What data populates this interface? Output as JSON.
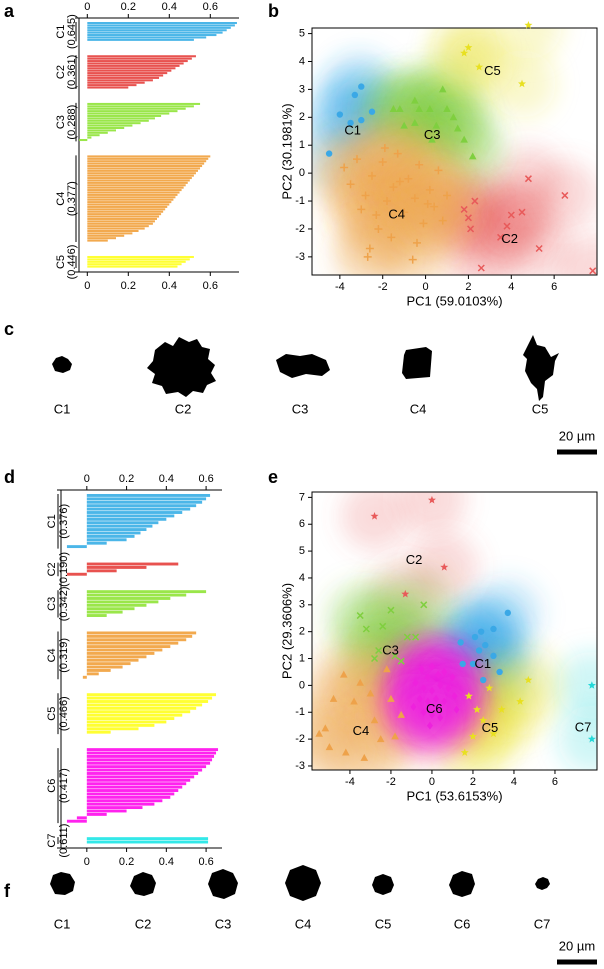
{
  "panel_labels": [
    "a",
    "b",
    "c",
    "d",
    "e",
    "f"
  ],
  "chart_data": [
    {
      "type": "silhouette",
      "xlim": [
        -0.06,
        0.74
      ],
      "xticks": [
        0,
        0.2,
        0.4,
        0.6
      ],
      "series": [
        {
          "name": "C1",
          "mean_label": "(0.645)",
          "color": "#4bb6e8",
          "values": [
            0.73,
            0.72,
            0.7,
            0.68,
            0.66,
            0.63,
            0.58,
            0.52
          ]
        },
        {
          "name": "C2",
          "mean_label": "(0.361)",
          "color": "#e8524f",
          "values": [
            0.53,
            0.51,
            0.49,
            0.47,
            0.45,
            0.43,
            0.41,
            0.39,
            0.37,
            0.35,
            0.32,
            0.28,
            0.24,
            0.2
          ]
        },
        {
          "name": "C3",
          "mean_label": "(0.288)",
          "color": "#9ae64a",
          "values": [
            0.55,
            0.52,
            0.48,
            0.44,
            0.4,
            0.36,
            0.33,
            0.3,
            0.26,
            0.22,
            0.18,
            0.14,
            0.1,
            0.06,
            0.02,
            -0.04
          ]
        },
        {
          "name": "C4",
          "mean_label": "(0.377)",
          "color": "#f2a94e",
          "values": [
            0.6,
            0.59,
            0.58,
            0.57,
            0.56,
            0.55,
            0.54,
            0.53,
            0.52,
            0.51,
            0.5,
            0.49,
            0.48,
            0.47,
            0.46,
            0.45,
            0.44,
            0.43,
            0.42,
            0.41,
            0.4,
            0.39,
            0.38,
            0.37,
            0.36,
            0.35,
            0.34,
            0.33,
            0.32,
            0.3,
            0.28,
            0.25,
            0.22,
            0.18,
            0.14,
            0.1
          ]
        },
        {
          "name": "C5",
          "mean_label": "(0.446)",
          "color": "#ffff33",
          "values": [
            0.52,
            0.5,
            0.48,
            0.46,
            0.44
          ]
        }
      ]
    },
    {
      "type": "scatter",
      "x_label": "PC1 (59.0103%)",
      "y_label": "PC2 (30.1981%)",
      "xlim": [
        -5.3,
        8.0
      ],
      "xticks": [
        -4,
        -2,
        0,
        2,
        4,
        6
      ],
      "ylim": [
        -3.65,
        5.2
      ],
      "yticks": [
        -3,
        -2,
        -1,
        0,
        1,
        2,
        3,
        4,
        5
      ],
      "series": [
        {
          "name": "C1",
          "color": "#3aa8e6",
          "marker": "circle",
          "x": [
            -4.5,
            -4,
            -3.5,
            -3.3,
            -3,
            -3,
            -2.5
          ],
          "y": [
            0.7,
            2.1,
            1.8,
            2.8,
            3.1,
            1.9,
            2.2
          ]
        },
        {
          "name": "C2",
          "color": "#e85a5a",
          "marker": "x",
          "x": [
            1.8,
            2.0,
            2.3,
            2.1,
            2.6,
            3.5,
            4.0,
            4.5,
            3.8,
            4.8,
            5.3,
            6.5,
            7.8
          ],
          "y": [
            -1.3,
            -1.6,
            -1.0,
            -2.0,
            -3.4,
            -2.3,
            -1.5,
            -1.4,
            -1.9,
            -0.2,
            -2.7,
            -0.8,
            -3.5
          ]
        },
        {
          "name": "C3",
          "color": "#7fcf3f",
          "marker": "triangle",
          "x": [
            -1.5,
            -1.2,
            -0.5,
            -0.3,
            0.2,
            0.5,
            0.8,
            1.0,
            1.3,
            1.5,
            -0.5,
            1.8,
            2.2,
            0.3,
            -1.0
          ],
          "y": [
            2.3,
            2.3,
            2.6,
            2.3,
            2.3,
            1.7,
            3.0,
            2.3,
            2.0,
            1.6,
            1.8,
            1.2,
            0.6,
            1.2,
            1.7
          ]
        },
        {
          "name": "C4",
          "color": "#eea24a",
          "marker": "plus",
          "x": [
            -3.8,
            -3.5,
            -3.2,
            -3.0,
            -2.8,
            -2.6,
            -2.5,
            -2.3,
            -2.0,
            -1.8,
            -1.6,
            -1.5,
            -1.3,
            -1.0,
            -0.8,
            -0.6,
            -0.5,
            -0.3,
            -0.1,
            0.2,
            0.4,
            0.6,
            0.8,
            1.0,
            -2.2,
            -1.2,
            -0.4,
            0.1,
            -2.7,
            -1.9
          ],
          "y": [
            0.2,
            -0.4,
            0.5,
            -1.3,
            -0.8,
            -2.7,
            -0.1,
            -1.5,
            0.4,
            -1.0,
            -2.3,
            -0.5,
            0.7,
            -1.4,
            -0.2,
            -3.1,
            -0.9,
            0.3,
            -1.8,
            -0.6,
            -1.2,
            0.1,
            -1.7,
            -0.8,
            -2.0,
            -0.3,
            -2.5,
            -1.1,
            -3.0,
            0.9
          ]
        },
        {
          "name": "C5",
          "color": "#e8e020",
          "marker": "star",
          "x": [
            1.8,
            2.0,
            2.5,
            4.5,
            4.8
          ],
          "y": [
            4.3,
            4.5,
            3.8,
            3.2,
            5.3
          ]
        }
      ]
    },
    {
      "type": "silhouette",
      "xlim": [
        -0.15,
        0.68
      ],
      "xticks": [
        0,
        0.2,
        0.4,
        0.6
      ],
      "series": [
        {
          "name": "C1",
          "mean_label": "(0.376)",
          "color": "#4bb6e8",
          "values": [
            0.62,
            0.6,
            0.58,
            0.55,
            0.52,
            0.48,
            0.44,
            0.4,
            0.36,
            0.33,
            0.3,
            0.27,
            0.24,
            0.2,
            0.1,
            -0.1
          ]
        },
        {
          "name": "C2",
          "mean_label": "(0.190)",
          "color": "#e8524f",
          "values": [
            0.46,
            0.3,
            0.15,
            -0.1
          ]
        },
        {
          "name": "C3",
          "mean_label": "(0.342)",
          "color": "#9ae64a",
          "values": [
            0.6,
            0.5,
            0.42,
            0.36,
            0.3,
            0.24,
            0.18,
            0.1
          ]
        },
        {
          "name": "C4",
          "mean_label": "(0.319)",
          "color": "#f2a94e",
          "values": [
            0.55,
            0.53,
            0.5,
            0.46,
            0.42,
            0.38,
            0.34,
            0.3,
            0.26,
            0.22,
            0.18,
            0.12,
            0.06,
            -0.02
          ]
        },
        {
          "name": "C5",
          "mean_label": "(0.466)",
          "color": "#ffff33",
          "values": [
            0.65,
            0.63,
            0.61,
            0.58,
            0.55,
            0.52,
            0.48,
            0.44,
            0.4,
            0.34,
            0.26,
            0.12
          ]
        },
        {
          "name": "C6",
          "mean_label": "(0.417)",
          "color": "#ff22ee",
          "values": [
            0.66,
            0.65,
            0.64,
            0.63,
            0.62,
            0.6,
            0.58,
            0.56,
            0.54,
            0.52,
            0.5,
            0.48,
            0.46,
            0.44,
            0.42,
            0.38,
            0.34,
            0.28,
            0.2,
            0.1,
            -0.05,
            -0.1
          ]
        },
        {
          "name": "C7",
          "mean_label": "(0.611)",
          "color": "#33e8e8",
          "values": [
            0.61,
            0.61
          ]
        }
      ]
    },
    {
      "type": "scatter",
      "x_label": "PC1 (53.6153%)",
      "y_label": "PC2 (29.3606%)",
      "xlim": [
        -5.85,
        8.05
      ],
      "xticks": [
        -4,
        -2,
        0,
        2,
        4,
        6
      ],
      "ylim": [
        -3.15,
        7.2
      ],
      "yticks": [
        -3,
        -2,
        -1,
        0,
        1,
        2,
        3,
        4,
        5,
        6,
        7
      ],
      "series": [
        {
          "name": "C1",
          "color": "#3aa8e6",
          "marker": "circle",
          "x": [
            1.5,
            2.0,
            2.3,
            2.5,
            2.6,
            3.0,
            3.3,
            3.0,
            3.7,
            2.1,
            1.4,
            2.4
          ],
          "y": [
            0.8,
            0.8,
            1.3,
            0.2,
            1.5,
            1.1,
            0.5,
            2.1,
            2.7,
            1.8,
            1.6,
            2.0
          ]
        },
        {
          "name": "C2",
          "color": "#e85a5a",
          "marker": "star",
          "x": [
            -2.8,
            0.0,
            0.6,
            -1.3
          ],
          "y": [
            6.3,
            6.9,
            4.4,
            3.4
          ]
        },
        {
          "name": "C3",
          "color": "#7fcf3f",
          "marker": "x",
          "x": [
            -3.5,
            -3.2,
            -2.6,
            -2.4,
            -1.8,
            -1.5,
            -2.0,
            -1.2,
            -0.8,
            -0.4,
            -2.8
          ],
          "y": [
            2.6,
            2.1,
            1.3,
            2.2,
            1.1,
            0.9,
            2.8,
            1.8,
            1.8,
            3.0,
            1.0
          ]
        },
        {
          "name": "C4",
          "color": "#eea24a",
          "marker": "triangle",
          "x": [
            -5.5,
            -5.2,
            -4.8,
            -4.3,
            -3.8,
            -3.5,
            -3.0,
            -2.8,
            -2.5,
            -2.0,
            -1.8,
            -4.2,
            -3.3,
            -5.0,
            -2.2,
            -1.5
          ],
          "y": [
            -1.8,
            -1.6,
            -0.5,
            0.4,
            -0.6,
            0.1,
            -0.3,
            -1.3,
            -2.0,
            -0.5,
            -1.9,
            -2.5,
            -2.7,
            -2.3,
            0.6,
            -1.1
          ]
        },
        {
          "name": "C5",
          "color": "#e8e020",
          "marker": "star",
          "x": [
            1.8,
            2.2,
            2.5,
            2.8,
            3.0,
            3.4,
            4.3,
            4.7,
            1.6,
            2.0
          ],
          "y": [
            -0.4,
            -0.9,
            -1.3,
            -0.1,
            -1.8,
            -0.9,
            -0.6,
            0.2,
            -2.5,
            -1.9
          ]
        },
        {
          "name": "C6",
          "color": "#ee22dd",
          "marker": "diamond",
          "x": [
            -0.5,
            -0.2,
            0.0,
            0.3,
            0.6,
            -0.8,
            -0.4,
            0.0,
            0.4,
            0.8,
            1.0,
            -0.6,
            -0.2,
            0.2,
            0.6,
            1.1,
            -0.4,
            0.0,
            0.4,
            -0.1,
            1.2,
            -0.9
          ],
          "y": [
            0.6,
            0.3,
            0.7,
            0.4,
            0.5,
            0.1,
            -0.1,
            -0.2,
            0.0,
            -0.1,
            0.3,
            -0.5,
            -0.6,
            -0.5,
            -0.6,
            -0.4,
            -1.0,
            -1.1,
            -1.2,
            -1.5,
            -0.9,
            -0.8
          ]
        },
        {
          "name": "C7",
          "color": "#22d8d8",
          "marker": "star",
          "x": [
            7.8,
            7.8
          ],
          "y": [
            0.0,
            -2.0
          ]
        }
      ]
    }
  ],
  "shapes": [
    {
      "labels": [
        "C1",
        "C2",
        "C3",
        "C4",
        "C5"
      ],
      "scale_bar": "20 µm"
    },
    {
      "labels": [
        "C1",
        "C2",
        "C3",
        "C4",
        "C5",
        "C6",
        "C7"
      ],
      "scale_bar": "20 µm"
    }
  ]
}
